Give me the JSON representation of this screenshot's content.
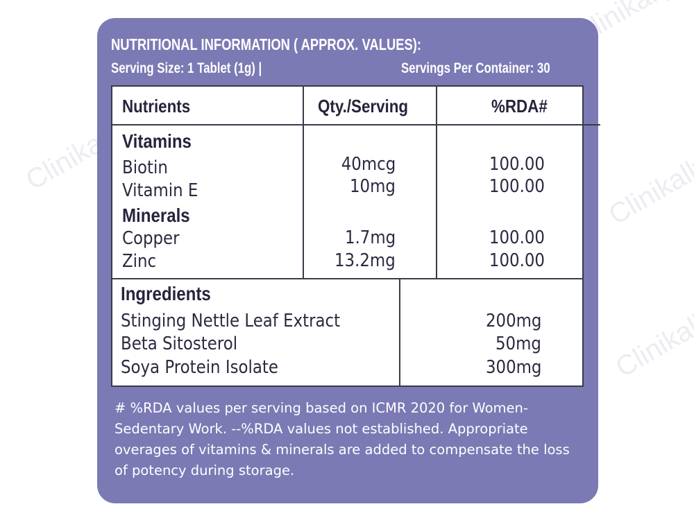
{
  "watermark": "Clinikally.",
  "header": {
    "title": "NUTRITIONAL INFORMATION ( APPROX. VALUES):",
    "serving_size": "Serving Size: 1 Tablet (1g) |",
    "servings_per_container": "Servings Per Container: 30"
  },
  "table": {
    "columns": [
      "Nutrients",
      "Qty./Serving",
      "%RDA#"
    ],
    "vitamins": {
      "label": "Vitamins",
      "rows": [
        {
          "name": "Biotin",
          "qty": "40mcg",
          "rda": "100.00"
        },
        {
          "name": "Vitamin E",
          "qty": "10mg",
          "rda": "100.00"
        }
      ]
    },
    "minerals": {
      "label": "Minerals",
      "rows": [
        {
          "name": "Copper",
          "qty": "1.7mg",
          "rda": "100.00"
        },
        {
          "name": "Zinc",
          "qty": "13.2mg",
          "rda": "100.00"
        }
      ]
    },
    "ingredients": {
      "label": "Ingredients",
      "rows": [
        {
          "name": "Stinging Nettle Leaf Extract",
          "qty": "200mg"
        },
        {
          "name": "Beta Sitosterol",
          "qty": "50mg"
        },
        {
          "name": "Soya Protein Isolate",
          "qty": "300mg"
        }
      ]
    }
  },
  "footnote": "# %RDA values per serving based on ICMR 2020 for Women-Sedentary Work. --%RDA values not established. Appropriate overages of vitamins & minerals are added to compensate the loss of potency during storage.",
  "colors": {
    "panel": "#7b7ab4",
    "table_bg": "#ffffff",
    "text_dark": "#26243c",
    "text_light": "#ffffff"
  }
}
